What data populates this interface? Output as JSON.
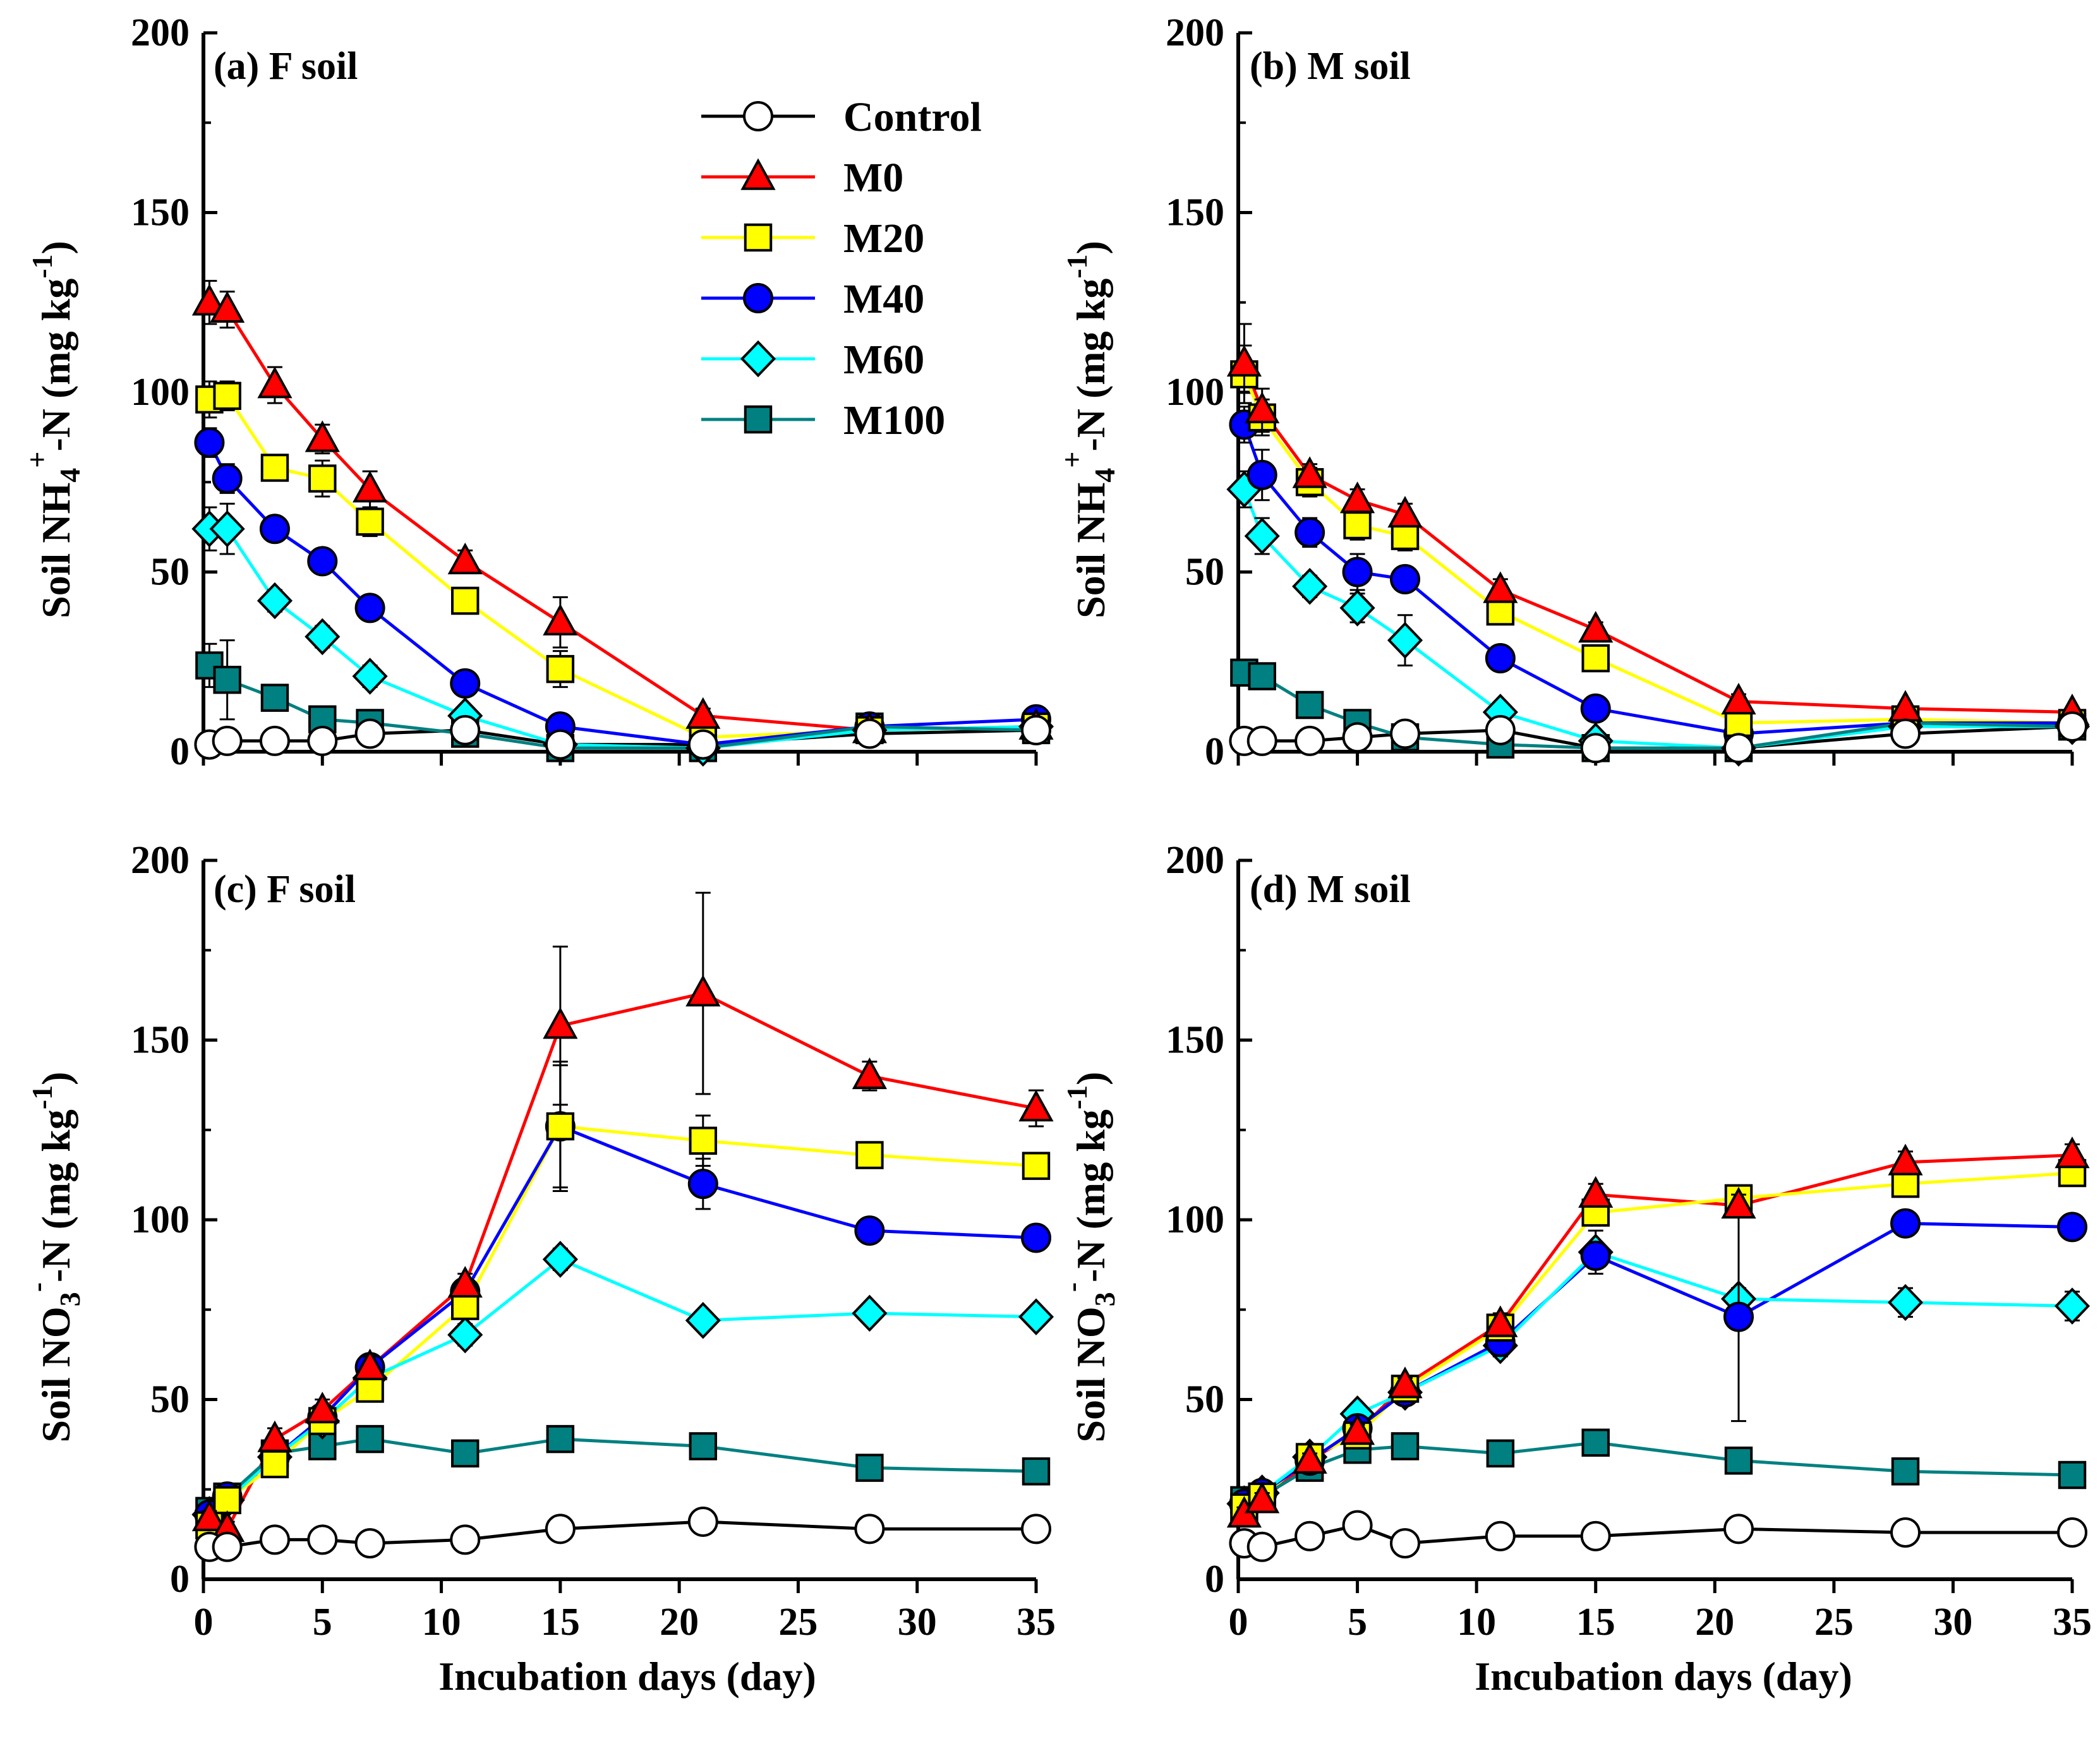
{
  "series_styles": [
    {
      "key": "control",
      "name": "Control",
      "marker": "circle",
      "line": "#000000",
      "fill": "#ffffff"
    },
    {
      "key": "m0",
      "name": "M0",
      "marker": "triangle",
      "line": "#ff0000",
      "fill": "#ff0000"
    },
    {
      "key": "m20",
      "name": "M20",
      "marker": "square",
      "line": "#ffff00",
      "fill": "#ffff00"
    },
    {
      "key": "m40",
      "name": "M40",
      "marker": "circle",
      "line": "#0000ff",
      "fill": "#0000ff"
    },
    {
      "key": "m60",
      "name": "M60",
      "marker": "diamond",
      "line": "#00ffff",
      "fill": "#00ffff"
    },
    {
      "key": "m100",
      "name": "M100",
      "marker": "square",
      "line": "#008080",
      "fill": "#008080"
    }
  ],
  "x_tick_labels": [
    "0",
    "5",
    "10",
    "15",
    "20",
    "25",
    "30",
    "35"
  ],
  "y_tick_labels": [
    "0",
    "50",
    "100",
    "150",
    "200"
  ],
  "xlabel": "Incubation days (day)",
  "ylabel_nh4": {
    "a": "Soil NH",
    "b": "4",
    "c": "+",
    "d": "-N (mg kg",
    "e": "-1",
    "f": ")"
  },
  "ylabel_no3": {
    "a": "Soil NO",
    "b": "3",
    "c": "-",
    "d": "-N (mg kg",
    "e": "-1",
    "f": ")"
  },
  "chart_data": [
    {
      "id": "a",
      "type": "line",
      "title": "(a) F soil",
      "variable": "NH4",
      "xlim": [
        0,
        35
      ],
      "ylim": [
        0,
        200
      ],
      "legend": "top-right",
      "x": [
        0.25,
        1,
        3,
        5,
        7,
        11,
        15,
        21,
        28,
        35
      ],
      "series": [
        {
          "name": "Control",
          "values": [
            2,
            3,
            3,
            3,
            5,
            6,
            2,
            2,
            5,
            6
          ],
          "err": [
            1,
            1,
            1,
            1,
            1,
            1,
            1,
            1,
            1,
            1
          ]
        },
        {
          "name": "M0",
          "values": [
            125,
            123,
            102,
            87,
            73,
            53,
            36,
            10,
            6,
            7
          ],
          "err": [
            6,
            5,
            5,
            4,
            5,
            3,
            7,
            2,
            1,
            1
          ]
        },
        {
          "name": "M20",
          "values": [
            98,
            99,
            79,
            76,
            64,
            42,
            23,
            4,
            6,
            7
          ],
          "err": [
            5,
            4,
            3,
            5,
            4,
            3,
            5,
            1,
            1,
            1
          ]
        },
        {
          "name": "M40",
          "values": [
            86,
            76,
            62,
            53,
            40,
            19,
            7,
            2,
            7,
            9
          ],
          "err": [
            4,
            4,
            3,
            3,
            3,
            2,
            2,
            1,
            1,
            1
          ]
        },
        {
          "name": "M60",
          "values": [
            62,
            62,
            42,
            32,
            21,
            10,
            2,
            1,
            6,
            7
          ],
          "err": [
            6,
            7,
            3,
            3,
            3,
            2,
            1,
            1,
            1,
            1
          ]
        },
        {
          "name": "M100",
          "values": [
            24,
            20,
            15,
            9,
            8,
            5,
            1,
            1,
            7,
            6
          ],
          "err": [
            6,
            11,
            2,
            2,
            2,
            1,
            1,
            1,
            1,
            1
          ]
        }
      ]
    },
    {
      "id": "b",
      "type": "line",
      "title": "(b) M soil",
      "variable": "NH4",
      "xlim": [
        0,
        35
      ],
      "ylim": [
        0,
        200
      ],
      "x": [
        0.25,
        1,
        3,
        5,
        7,
        11,
        15,
        21,
        28,
        35
      ],
      "series": [
        {
          "name": "Control",
          "values": [
            3,
            3,
            3,
            4,
            5,
            6,
            1,
            1,
            5,
            7
          ],
          "err": [
            1,
            1,
            1,
            1,
            1,
            1,
            1,
            1,
            1,
            1
          ]
        },
        {
          "name": "M0",
          "values": [
            108,
            95,
            77,
            70,
            66,
            45,
            34,
            14,
            12,
            11
          ],
          "err": [
            11,
            6,
            3,
            3,
            3,
            3,
            2,
            2,
            1,
            1
          ]
        },
        {
          "name": "M20",
          "values": [
            105,
            93,
            75,
            63,
            60,
            39,
            26,
            8,
            9,
            8
          ],
          "err": [
            8,
            5,
            4,
            4,
            4,
            3,
            3,
            2,
            1,
            1
          ]
        },
        {
          "name": "M40",
          "values": [
            91,
            77,
            61,
            50,
            48,
            26,
            12,
            5,
            8,
            8
          ],
          "err": [
            5,
            7,
            4,
            5,
            3,
            2,
            2,
            1,
            1,
            1
          ]
        },
        {
          "name": "M60",
          "values": [
            73,
            60,
            46,
            40,
            31,
            11,
            3,
            1,
            7,
            7
          ],
          "err": [
            5,
            5,
            3,
            4,
            7,
            2,
            1,
            1,
            1,
            1
          ]
        },
        {
          "name": "M100",
          "values": [
            22,
            21,
            13,
            8,
            4,
            2,
            1,
            1,
            8,
            7
          ],
          "err": [
            2,
            2,
            2,
            1,
            1,
            1,
            1,
            1,
            1,
            1
          ]
        }
      ]
    },
    {
      "id": "c",
      "type": "line",
      "title": "(c) F soil",
      "variable": "NO3",
      "xlim": [
        0,
        35
      ],
      "ylim": [
        0,
        200
      ],
      "x": [
        0.25,
        1,
        3,
        5,
        7,
        11,
        15,
        21,
        28,
        35
      ],
      "series": [
        {
          "name": "Control",
          "values": [
            9,
            9,
            11,
            11,
            10,
            11,
            14,
            16,
            14,
            14
          ],
          "err": [
            1,
            1,
            1,
            1,
            1,
            1,
            1,
            1,
            1,
            1
          ]
        },
        {
          "name": "M0",
          "values": [
            17,
            14,
            39,
            47,
            59,
            82,
            154,
            163,
            140,
            131
          ],
          "err": [
            2,
            2,
            3,
            3,
            3,
            3,
            22,
            28,
            4,
            5
          ]
        },
        {
          "name": "M20",
          "values": [
            15,
            22,
            32,
            44,
            53,
            76,
            126,
            122,
            118,
            115
          ],
          "err": [
            2,
            2,
            3,
            3,
            3,
            3,
            17,
            7,
            2,
            2
          ]
        },
        {
          "name": "M40",
          "values": [
            18,
            23,
            34,
            45,
            59,
            80,
            126,
            110,
            97,
            95
          ],
          "err": [
            2,
            2,
            3,
            3,
            3,
            3,
            18,
            7,
            3,
            3
          ]
        },
        {
          "name": "M60",
          "values": [
            18,
            22,
            34,
            44,
            56,
            68,
            89,
            72,
            74,
            73
          ],
          "err": [
            2,
            2,
            3,
            3,
            3,
            3,
            3,
            2,
            2,
            2
          ]
        },
        {
          "name": "M100",
          "values": [
            19,
            23,
            35,
            37,
            39,
            35,
            39,
            37,
            31,
            30
          ],
          "err": [
            2,
            2,
            2,
            2,
            2,
            2,
            2,
            2,
            2,
            2
          ]
        }
      ]
    },
    {
      "id": "d",
      "type": "line",
      "title": "(d) M soil",
      "variable": "NO3",
      "xlim": [
        0,
        35
      ],
      "ylim": [
        0,
        200
      ],
      "x": [
        0.25,
        1,
        3,
        5,
        7,
        11,
        15,
        21,
        28,
        35
      ],
      "series": [
        {
          "name": "Control",
          "values": [
            10,
            9,
            12,
            15,
            10,
            12,
            12,
            14,
            13,
            13
          ],
          "err": [
            1,
            1,
            1,
            1,
            1,
            1,
            1,
            1,
            1,
            1
          ]
        },
        {
          "name": "M0",
          "values": [
            18,
            22,
            33,
            41,
            54,
            71,
            107,
            104,
            116,
            118
          ],
          "err": [
            2,
            2,
            2,
            2,
            2,
            3,
            3,
            3,
            3,
            3
          ]
        },
        {
          "name": "M20",
          "values": [
            20,
            23,
            34,
            40,
            53,
            70,
            102,
            106,
            110,
            113
          ],
          "err": [
            2,
            2,
            2,
            2,
            2,
            3,
            3,
            3,
            3,
            3
          ]
        },
        {
          "name": "M40",
          "values": [
            21,
            24,
            33,
            42,
            52,
            66,
            90,
            73,
            99,
            98
          ],
          "err": [
            2,
            2,
            2,
            2,
            2,
            3,
            3,
            29,
            3,
            3
          ]
        },
        {
          "name": "M60",
          "values": [
            21,
            24,
            34,
            46,
            52,
            65,
            91,
            78,
            77,
            76
          ],
          "err": [
            2,
            2,
            2,
            2,
            2,
            3,
            6,
            3,
            4,
            4
          ]
        },
        {
          "name": "M100",
          "values": [
            22,
            23,
            31,
            36,
            37,
            35,
            38,
            33,
            30,
            29
          ],
          "err": [
            2,
            2,
            2,
            2,
            2,
            2,
            2,
            2,
            2,
            2
          ]
        }
      ]
    }
  ]
}
